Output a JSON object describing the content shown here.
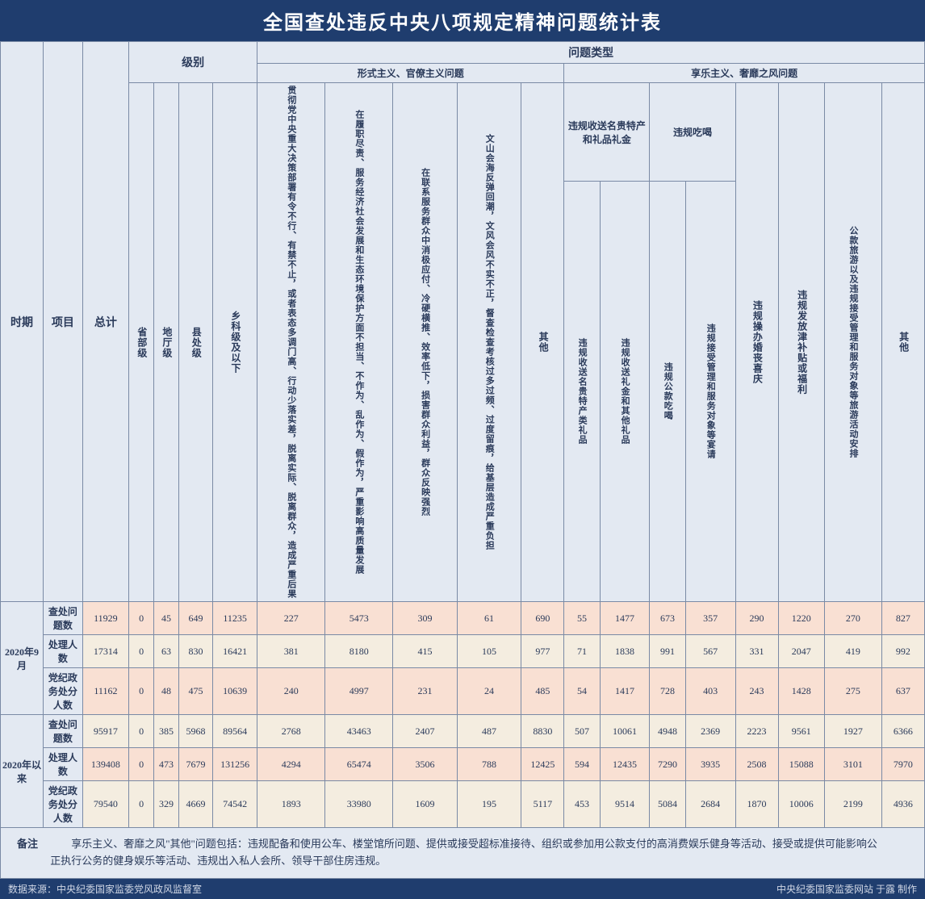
{
  "title": "全国查处违反中央八项规定精神问题统计表",
  "cols": {
    "time": "时期",
    "item": "项目",
    "total": "总计",
    "level": "级别",
    "lv1": "省部级",
    "lv2": "地厅级",
    "lv3": "县处级",
    "lv4": "乡科级及以下",
    "ptype": "问题类型",
    "cat1": "形式主义、官僚主义问题",
    "cat2": "享乐主义、奢靡之风问题",
    "c1a": "贯彻党中央重大决策部署有令不行、有禁不止，或者表态多调门高、行动少落实差，脱离实际、脱离群众，造成严重后果",
    "c1b": "在履职尽责、服务经济社会发展和生态环境保护方面不担当、不作为、乱作为、假作为，严重影响高质量发展",
    "c1c": "在联系服务群众中消极应付、冷硬横推、效率低下，损害群众利益，群众反映强烈",
    "c1d": "文山会海反弹回潮，文风会风不实不正，督查检查考核过多过频、过度留痕，给基层造成严重负担",
    "c1e": "其他",
    "c2grp1": "违规收送名贵特产和礼品礼金",
    "c2grp2": "违规吃喝",
    "c2a": "违规收送名贵特产类礼品",
    "c2b": "违规收送礼金和其他礼品",
    "c2c": "违规公款吃喝",
    "c2d": "违规接受管理和服务对象等宴请",
    "c2e": "违规操办婚丧喜庆",
    "c2f": "违规发放津补贴或福利",
    "c2g": "公款旅游以及违规接受管理和服务对象等旅游活动安排",
    "c2h": "其他"
  },
  "periods": [
    {
      "name": "2020年9月",
      "rows": [
        {
          "label": "查处问题数",
          "alt": 1,
          "v": [
            11929,
            0,
            45,
            649,
            11235,
            227,
            5473,
            309,
            61,
            690,
            55,
            1477,
            673,
            357,
            290,
            1220,
            270,
            827
          ]
        },
        {
          "label": "处理人数",
          "alt": 0,
          "v": [
            17314,
            0,
            63,
            830,
            16421,
            381,
            8180,
            415,
            105,
            977,
            71,
            1838,
            991,
            567,
            331,
            2047,
            419,
            992
          ]
        },
        {
          "label": "党纪政务处分人数",
          "alt": 1,
          "v": [
            11162,
            0,
            48,
            475,
            10639,
            240,
            4997,
            231,
            24,
            485,
            54,
            1417,
            728,
            403,
            243,
            1428,
            275,
            637
          ]
        }
      ]
    },
    {
      "name": "2020年以来",
      "rows": [
        {
          "label": "查处问题数",
          "alt": 0,
          "v": [
            95917,
            0,
            385,
            5968,
            89564,
            2768,
            43463,
            2407,
            487,
            8830,
            507,
            10061,
            4948,
            2369,
            2223,
            9561,
            1927,
            6366
          ]
        },
        {
          "label": "处理人数",
          "alt": 1,
          "v": [
            139408,
            0,
            473,
            7679,
            131256,
            4294,
            65474,
            3506,
            788,
            12425,
            594,
            12435,
            7290,
            3935,
            2508,
            15088,
            3101,
            7970
          ]
        },
        {
          "label": "党纪政务处分人数",
          "alt": 0,
          "v": [
            79540,
            0,
            329,
            4669,
            74542,
            1893,
            33980,
            1609,
            195,
            5117,
            453,
            9514,
            5084,
            2684,
            1870,
            10006,
            2199,
            4936
          ]
        }
      ]
    }
  ],
  "note_label": "备注",
  "note": "享乐主义、奢靡之风\"其他\"问题包括：违规配备和使用公车、楼堂馆所问题、提供或接受超标准接待、组织或参加用公款支付的高消费娱乐健身等活动、接受或提供可能影响公正执行公务的健身娱乐等活动、违规出入私人会所、领导干部住房违规。",
  "footer_left": "数据来源：中央纪委国家监委党风政风监督室",
  "footer_right": "中央纪委国家监委网站 于露 制作",
  "colors": {
    "title_bg": "#1f3d6e",
    "header_bg": "#e3e9f2",
    "row_bg": "#f4ede0",
    "row_alt": "#f9e0d3",
    "border": "#7a8aa5",
    "text": "#2a3a5a"
  }
}
